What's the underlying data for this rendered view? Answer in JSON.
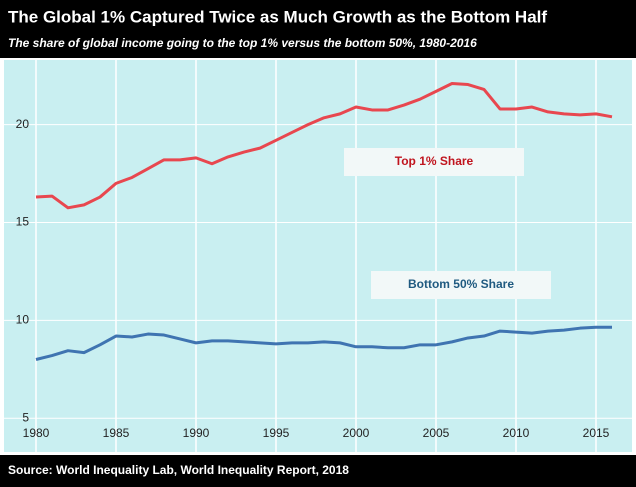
{
  "chart_data": {
    "type": "line",
    "title": "The Global 1% Captured Twice as Much Growth as the Bottom Half",
    "subtitle": "The share of global income going to the top 1% versus the bottom 50%, 1980-2016",
    "source": "Source: World Inequality Lab, World Inequality Report, 2018",
    "x": [
      1980,
      1981,
      1982,
      1983,
      1984,
      1985,
      1986,
      1987,
      1988,
      1989,
      1990,
      1991,
      1992,
      1993,
      1994,
      1995,
      1996,
      1997,
      1998,
      1999,
      2000,
      2001,
      2002,
      2003,
      2004,
      2005,
      2006,
      2007,
      2008,
      2009,
      2010,
      2011,
      2012,
      2013,
      2014,
      2015,
      2016
    ],
    "series": [
      {
        "name": "Top 1% Share",
        "color": "#e8474f",
        "values": [
          16.3,
          16.35,
          15.75,
          15.9,
          16.3,
          17.0,
          17.3,
          17.75,
          18.2,
          18.2,
          18.3,
          18.0,
          18.35,
          18.6,
          18.8,
          19.2,
          19.6,
          20.0,
          20.35,
          20.55,
          20.9,
          20.75,
          20.75,
          21.0,
          21.3,
          21.7,
          22.1,
          22.05,
          21.8,
          20.8,
          20.8,
          20.9,
          20.65,
          20.55,
          20.5,
          20.55,
          20.4
        ]
      },
      {
        "name": "Bottom 50% Share",
        "color": "#3f74b1",
        "values": [
          8.0,
          8.2,
          8.45,
          8.35,
          8.75,
          9.2,
          9.15,
          9.3,
          9.25,
          9.05,
          8.85,
          8.95,
          8.95,
          8.9,
          8.85,
          8.8,
          8.85,
          8.85,
          8.9,
          8.85,
          8.65,
          8.65,
          8.6,
          8.6,
          8.75,
          8.75,
          8.9,
          9.1,
          9.2,
          9.45,
          9.4,
          9.35,
          9.45,
          9.5,
          9.6,
          9.65,
          9.65
        ]
      }
    ],
    "xlim": [
      1980,
      2016
    ],
    "xticks": [
      1980,
      1985,
      1990,
      1995,
      2000,
      2005,
      2010,
      2015
    ],
    "ylim": [
      4.5,
      23.2
    ],
    "yticks": [
      5,
      10,
      15,
      20
    ],
    "grid": true
  }
}
